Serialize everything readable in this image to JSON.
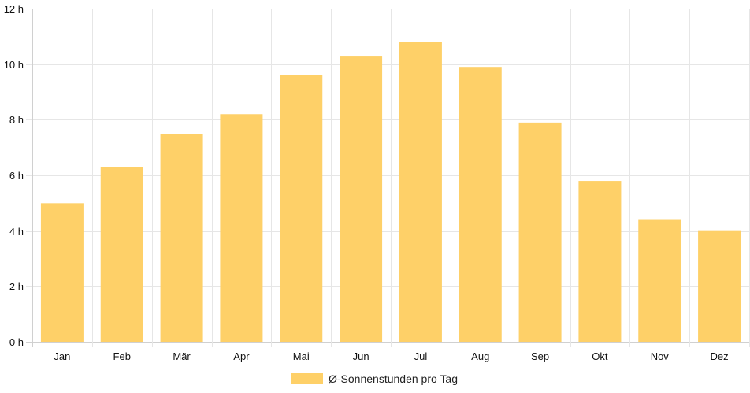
{
  "chart_data": {
    "type": "bar",
    "categories": [
      "Jan",
      "Feb",
      "Mär",
      "Apr",
      "Mai",
      "Jun",
      "Jul",
      "Aug",
      "Sep",
      "Okt",
      "Nov",
      "Dez"
    ],
    "series": [
      {
        "name": "Ø-Sonnenstunden pro Tag",
        "values": [
          5.0,
          6.3,
          7.5,
          8.2,
          9.6,
          10.3,
          10.8,
          9.9,
          7.9,
          5.8,
          4.4,
          4.0
        ],
        "color": "#fed068"
      }
    ],
    "ylim": [
      0,
      12
    ],
    "yticks": [
      0,
      2,
      4,
      6,
      8,
      10,
      12
    ],
    "ytick_labels": [
      "0 h",
      "2 h",
      "4 h",
      "6 h",
      "8 h",
      "10 h",
      "12 h"
    ],
    "grid": true,
    "legend": "bottom-center"
  }
}
